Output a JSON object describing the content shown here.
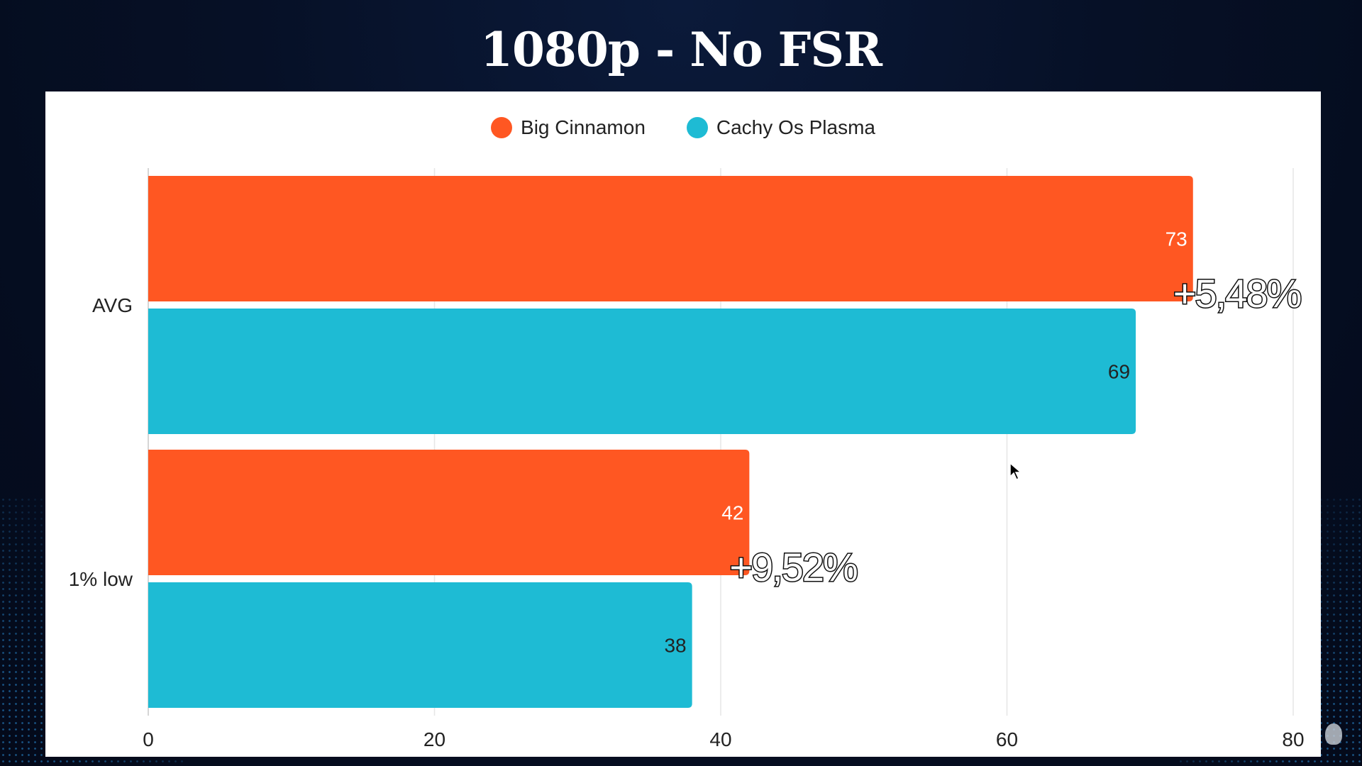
{
  "title": "1080p - No FSR",
  "colors": {
    "big_cinnamon": "#FF5722",
    "cachy_os_plasma": "#1EBBD4",
    "grid": "#e6e6e6",
    "label_dark": "#222222"
  },
  "legend": [
    {
      "label": "Big Cinnamon",
      "color": "#FF5722"
    },
    {
      "label": "Cachy Os Plasma",
      "color": "#1EBBD4"
    }
  ],
  "chart_data": {
    "type": "bar",
    "orientation": "horizontal",
    "categories": [
      "AVG",
      "1% low"
    ],
    "series": [
      {
        "name": "Big Cinnamon",
        "values": [
          73,
          42
        ],
        "color": "#FF5722"
      },
      {
        "name": "Cachy Os Plasma",
        "values": [
          69,
          38
        ],
        "color": "#1EBBD4"
      }
    ],
    "xlim": [
      0,
      80
    ],
    "xticks": [
      "0",
      "20",
      "40",
      "60",
      "80"
    ],
    "grid": true,
    "legend_position": "top-center",
    "annotations": [
      {
        "category": "AVG",
        "text": "+5,48%"
      },
      {
        "category": "1% low",
        "text": "+9,52%"
      }
    ]
  }
}
